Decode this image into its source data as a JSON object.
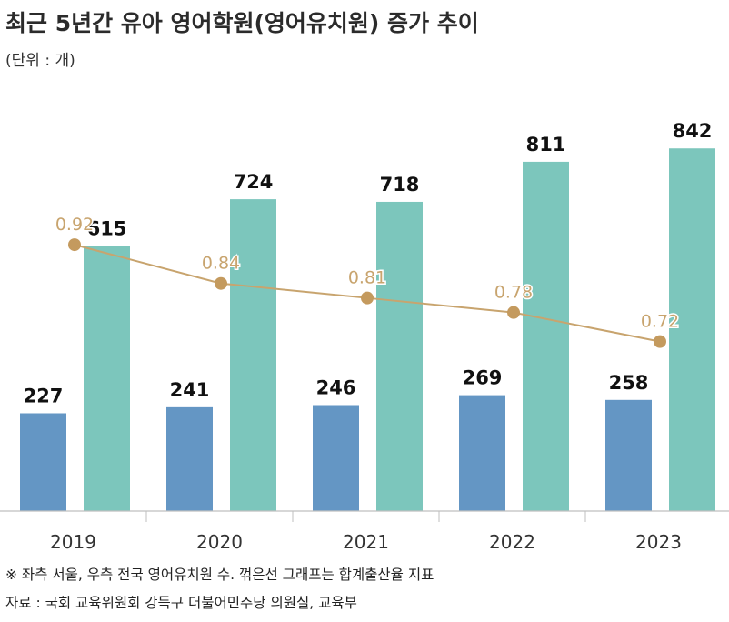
{
  "title": "최근 5년간 유아 영어학원(영어유치원) 증가 추이",
  "unit": "(단위 : 개)",
  "footnotes": {
    "note": "※ 좌측 서울, 우측 전국 영어유치원 수. 꺾은선 그래프는 합계출산율 지표",
    "source": "자료 : 국회 교육위원회 강득구 더불어민주당 의원실, 교육부"
  },
  "colors": {
    "seoul_bar": "#6496c4",
    "national_bar": "#7cc6bc",
    "line": "#c8a46e",
    "marker": "#c49a5e",
    "axis": "#bfbfbf"
  },
  "chart_data": {
    "type": "bar",
    "categories": [
      "2019",
      "2020",
      "2021",
      "2022",
      "2023"
    ],
    "series": [
      {
        "values": [
          227,
          241,
          246,
          269,
          258
        ]
      },
      {
        "values": [
          615,
          724,
          718,
          811,
          842
        ]
      }
    ],
    "line_series": {
      "values": [
        0.92,
        0.84,
        0.81,
        0.78,
        0.72
      ]
    },
    "ylim": [
      0,
      1000
    ],
    "line_ylim": [
      0.37,
      1.2
    ],
    "grid": false,
    "legend": "none"
  }
}
